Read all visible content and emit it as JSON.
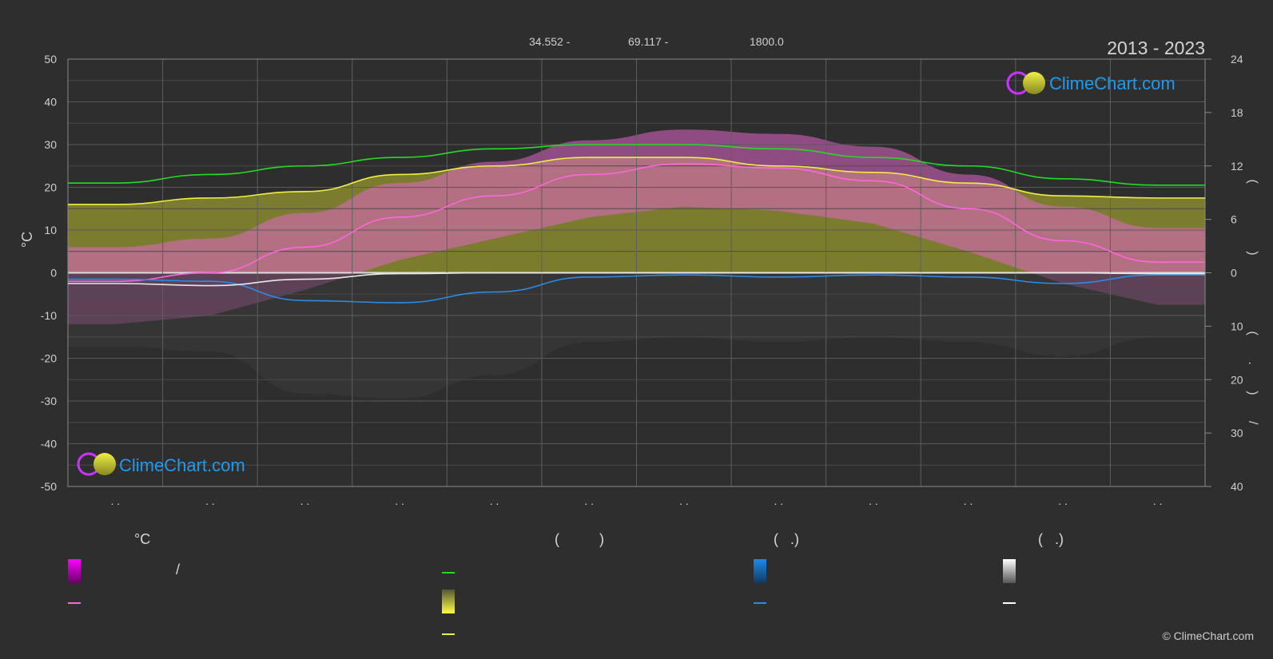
{
  "header": {
    "period": "2013 - 2023",
    "coord_lat": "34.552 -",
    "coord_lon": "69.117 -",
    "elevation": "1800.0"
  },
  "brand": {
    "logo_text": "ClimeChart.com",
    "copyright": "© ClimeChart.com",
    "accent": "#1e9bf0"
  },
  "chart_data": {
    "type": "line",
    "x": [
      1,
      2,
      3,
      4,
      5,
      6,
      7,
      8,
      9,
      10,
      11,
      12
    ],
    "x_tick_labels": [
      ". .",
      ". .",
      ". .",
      ". .",
      ". .",
      ". .",
      ". .",
      ". .",
      ". .",
      ". .",
      ". .",
      ". ."
    ],
    "y_left": {
      "label": "°C",
      "range": [
        -50,
        50
      ],
      "ticks": [
        50,
        40,
        30,
        20,
        10,
        0,
        -10,
        -20,
        -30,
        -40,
        -50
      ]
    },
    "y_right_upper": {
      "label": "(  )",
      "range": [
        0,
        24
      ],
      "ticks": [
        24,
        18,
        12,
        6,
        0
      ]
    },
    "y_right_lower": {
      "label": "( . )  /",
      "range": [
        0,
        40
      ],
      "ticks": [
        0,
        10,
        20,
        30,
        40
      ]
    },
    "series": [
      {
        "color": "#22dd22",
        "values": [
          21,
          23,
          25,
          27,
          29,
          30,
          30,
          29,
          27,
          25,
          22,
          20.5
        ]
      },
      {
        "color": "#eeee44",
        "values": [
          16,
          17.5,
          19,
          23,
          25,
          27,
          27,
          25,
          23.5,
          21,
          18,
          17.5
        ]
      },
      {
        "color": "#ff66dd",
        "values": [
          -2,
          0,
          6,
          13,
          18,
          23,
          25.5,
          24.5,
          21.5,
          15,
          7.5,
          2.5
        ]
      },
      {
        "color": "#2a8ce8",
        "values": [
          -1.5,
          -2,
          -6.5,
          -7,
          -4.5,
          -1,
          -0.5,
          -1,
          -0.5,
          -1,
          -2.5,
          -0.5
        ]
      },
      {
        "color": "#e8e8e8",
        "values": [
          -2.5,
          -3,
          -1.5,
          -0.2,
          0,
          0,
          0,
          0,
          0,
          0,
          0,
          -0.2
        ]
      }
    ]
  },
  "legend": {
    "col1": {
      "title": "°C",
      "item1_label": "/",
      "swatch_range": "#ff00ff",
      "swatch_line": "#ff66dd"
    },
    "col2": {
      "title": "(          )",
      "swatch_line_green": "#22dd22",
      "swatch_sun": "#eeee44",
      "swatch_line_yellow": "#eeee44"
    },
    "col3": {
      "title": "(   .)",
      "swatch_rain": "#1e7fd8",
      "swatch_line": "#2a8ce8"
    },
    "col4": {
      "title": "(   .)",
      "swatch_snow": "#e8e8e8",
      "swatch_line": "#ffffff"
    }
  }
}
